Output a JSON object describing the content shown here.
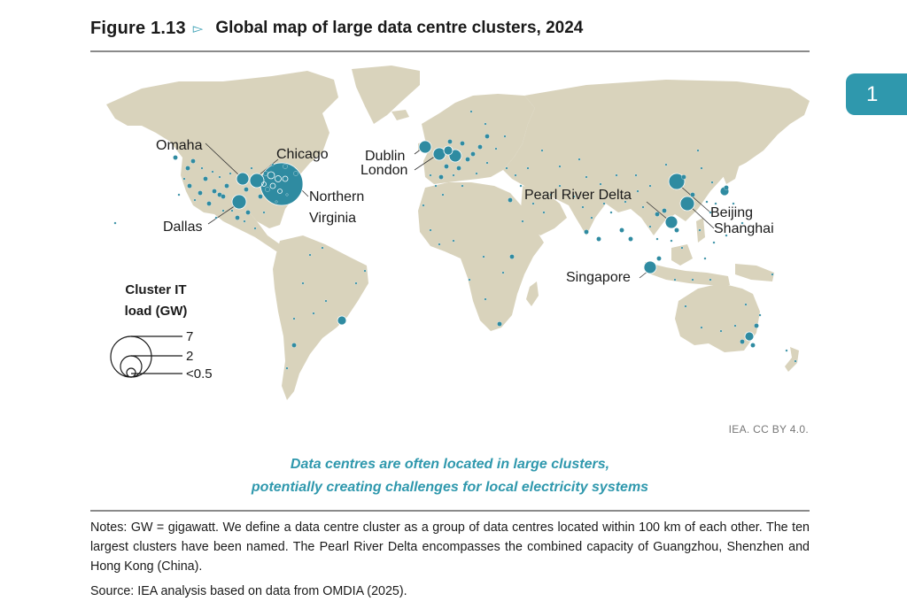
{
  "header": {
    "figure_number": "Figure 1.13",
    "arrow_icon": "▻",
    "title": "Global map of large data centre clusters, 2024"
  },
  "chapter_tab": "1",
  "map": {
    "land_color": "#d9d3bc",
    "cluster_color": "#2f8ba1",
    "labels": [
      {
        "id": "omaha",
        "text": "Omaha"
      },
      {
        "id": "chicago",
        "text": "Chicago"
      },
      {
        "id": "nva1",
        "text": "Northern"
      },
      {
        "id": "nva2",
        "text": "Virginia"
      },
      {
        "id": "dallas",
        "text": "Dallas"
      },
      {
        "id": "dublin",
        "text": "Dublin"
      },
      {
        "id": "london",
        "text": "London"
      },
      {
        "id": "prd",
        "text": "Pearl River Delta"
      },
      {
        "id": "beijing",
        "text": "Beijing"
      },
      {
        "id": "shanghai",
        "text": "Shanghai"
      },
      {
        "id": "singapore",
        "text": "Singapore"
      }
    ],
    "legend": {
      "title_line1": "Cluster IT",
      "title_line2": "load (GW)",
      "values": [
        "7",
        "2",
        "<0.5"
      ]
    }
  },
  "credit": "IEA. CC BY 4.0.",
  "caption": {
    "line1": "Data centres are often located in large clusters,",
    "line2": "potentially creating challenges for local electricity systems"
  },
  "notes": "Notes: GW = gigawatt. We define a data centre cluster as a group of data centres located within 100 km of each other. The ten largest clusters have been named. The Pearl River Delta encompasses the combined capacity of Guangzhou, Shenzhen and Hong Kong (China).",
  "source": "Source: IEA analysis based on data from OMDIA (2025)."
}
